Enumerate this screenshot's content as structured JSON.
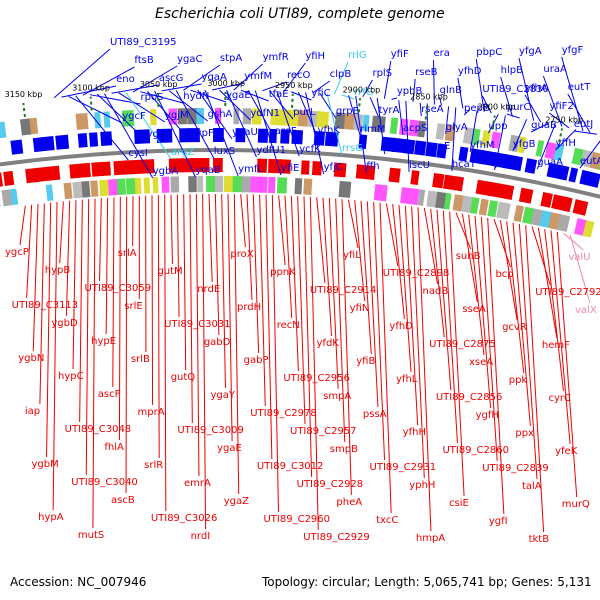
{
  "title": "Escherichia coli UTI89, complete genome",
  "footer": {
    "accession": "Accession: NC_007946",
    "summary": "Topology: circular; Length: 5,065,741 bp; Genes: 5,131"
  },
  "colors": {
    "forward": "#0000ee",
    "reverse": "#ee0000",
    "rna_forward": "#33ccee",
    "rna_reverse": "#ee88aa",
    "backbone": "#808080",
    "tick": "#1a7a1a"
  },
  "ticks": [
    "3150 kbp",
    "3100 kbp",
    "3050 kbp",
    "3000 kbp",
    "2950 kbp",
    "2900 kbp",
    "2850 kbp",
    "2800 kbp",
    "2750 kbp"
  ],
  "forward_labels": [
    "UTI89_C3195",
    "eno",
    "ygcF",
    "cysI",
    "ftsB",
    "rpoS",
    "ygbI",
    "ygbA",
    "ascG",
    "ygjM",
    "argZ",
    "ygaC",
    "hydN",
    "hypF",
    "yqaB",
    "yqaA",
    "gshA",
    "luxS",
    "stpA",
    "ygaE",
    "ygaU",
    "ymfL",
    "ymfM",
    "ydfN1",
    "ydfU1",
    "ymfR",
    "tfaE",
    "aroF",
    "yfiE",
    "recO",
    "purL",
    "ycfK",
    "yfiH",
    "yfiC",
    "yfhK",
    "yfjC",
    "clpB",
    "grpE",
    "rrsG",
    "rrlG",
    "rrfG",
    "rimM",
    "ffh",
    "rplS",
    "tyrA",
    "kgtP",
    "yfiF",
    "yphB",
    "acpS",
    "iscU",
    "rseB",
    "rseA",
    "rpoE",
    "era",
    "glnB",
    "glyA",
    "hcaT",
    "yfhD",
    "pepB",
    "yfhM",
    "pbpC",
    "UTI89_C2830",
    "upp",
    "perM",
    "hlpB",
    "purC",
    "yfgB",
    "yfgA",
    "yfhA",
    "guaB",
    "guaA",
    "uraA",
    "yfiF2",
    "yffH",
    "yfgF",
    "eutT",
    "eutJ",
    "eutA"
  ],
  "reverse_labels": [
    "ygcP",
    "UTI89_C3113",
    "ygbN",
    "iap",
    "ygbM",
    "hypA",
    "hypB",
    "ygbD",
    "hypC",
    "UTI89_C3048",
    "UTI89_C3040",
    "mutS",
    "UTI89_C3059",
    "hypE",
    "ascF",
    "fhlA",
    "ascB",
    "srlA",
    "srlE",
    "srlB",
    "mprA",
    "srlR",
    "UTI89_C3026",
    "gutM",
    "UTI89_C3031",
    "gutQ",
    "UTI89_C3009",
    "emrA",
    "nrdI",
    "nrdE",
    "gabD",
    "ygaY",
    "ygaE",
    "ygaZ",
    "proX",
    "prdH",
    "gabP",
    "UTI89_C2978",
    "UTI89_C3012",
    "UTI89_C2960",
    "ppnK",
    "recN",
    "UTI89_C2956",
    "UTI89_C2957",
    "UTI89_C2928",
    "UTI89_C2929",
    "UTI89_C2914",
    "yfdK",
    "smpA",
    "smpB",
    "pheA",
    "yfiL",
    "yfiN",
    "yfiB",
    "pssA",
    "UTI89_C2931",
    "txcC",
    "UTI89_C2898",
    "yfhD",
    "yfhL",
    "yfhH",
    "yphH",
    "hmpA",
    "nadB",
    "UTI89_C2875",
    "UTI89_C2856",
    "UTI89_C2860",
    "csiE",
    "suhB",
    "sseA",
    "xseA",
    "ygfH",
    "UTI89_C2839",
    "ygfI",
    "bcp",
    "gcvR",
    "ppk",
    "ppx",
    "talA",
    "tktB",
    "UTI89_C2792",
    "hemF",
    "cyrC",
    "yfeK",
    "murQ",
    "valU",
    "valX"
  ]
}
